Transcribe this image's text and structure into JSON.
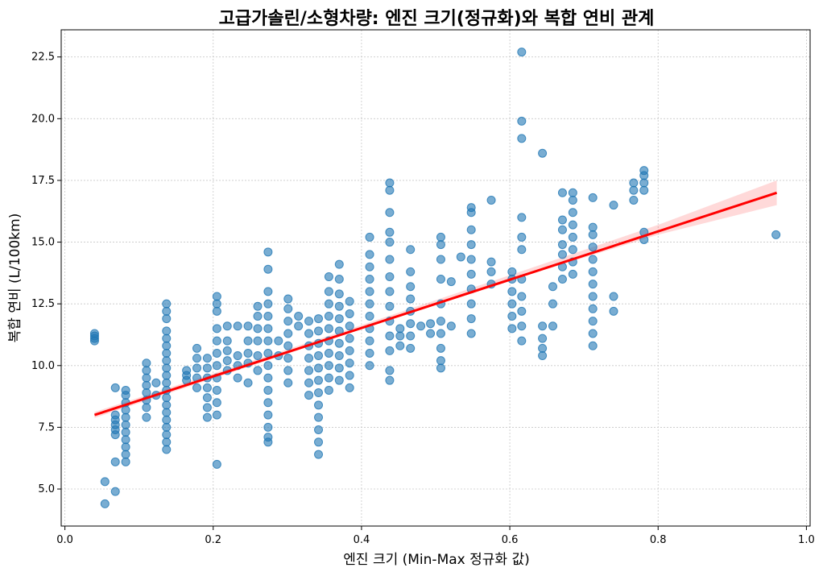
{
  "chart_data": {
    "type": "scatter",
    "title": "고급가솔린/소형차량: 엔진 크기(정규화)와 복합 연비 관계",
    "xlabel": "엔진 크기 (Min-Max 정규화 값)",
    "ylabel": "복합 연비 (L/100km)",
    "xlim": [
      -0.005,
      1.005
    ],
    "ylim": [
      3.5,
      23.6
    ],
    "xticks": [
      0.0,
      0.2,
      0.4,
      0.6,
      0.8,
      1.0
    ],
    "xtick_labels": [
      "0.0",
      "0.2",
      "0.4",
      "0.6",
      "0.8",
      "1.0"
    ],
    "yticks": [
      5.0,
      7.5,
      10.0,
      12.5,
      15.0,
      17.5,
      20.0,
      22.5
    ],
    "ytick_labels": [
      "5.0",
      "7.5",
      "10.0",
      "12.5",
      "15.0",
      "17.5",
      "20.0",
      "22.5"
    ],
    "grid": true,
    "colors": {
      "points": "#1f77b4",
      "regression": "#ff0000"
    },
    "regression": {
      "x": [
        0.04,
        0.96
      ],
      "y": [
        8.0,
        17.0
      ],
      "ci_x": [
        0.04,
        0.2,
        0.4,
        0.6,
        0.8,
        0.96
      ],
      "ci_lower": [
        7.88,
        9.48,
        11.48,
        13.44,
        15.3,
        16.5
      ],
      "ci_upper": [
        8.12,
        9.68,
        11.64,
        13.66,
        15.7,
        17.5
      ]
    },
    "points": [
      [
        0.04,
        11.0
      ],
      [
        0.04,
        11.1
      ],
      [
        0.04,
        11.2
      ],
      [
        0.04,
        11.3
      ],
      [
        0.054,
        5.3
      ],
      [
        0.054,
        4.4
      ],
      [
        0.068,
        4.9
      ],
      [
        0.068,
        6.1
      ],
      [
        0.068,
        7.2
      ],
      [
        0.068,
        7.4
      ],
      [
        0.068,
        7.6
      ],
      [
        0.068,
        7.8
      ],
      [
        0.068,
        8.0
      ],
      [
        0.068,
        9.1
      ],
      [
        0.082,
        6.1
      ],
      [
        0.082,
        6.4
      ],
      [
        0.082,
        6.7
      ],
      [
        0.082,
        7.0
      ],
      [
        0.082,
        7.3
      ],
      [
        0.082,
        7.6
      ],
      [
        0.082,
        7.9
      ],
      [
        0.082,
        8.2
      ],
      [
        0.082,
        8.5
      ],
      [
        0.082,
        8.8
      ],
      [
        0.082,
        9.0
      ],
      [
        0.11,
        7.9
      ],
      [
        0.11,
        8.3
      ],
      [
        0.11,
        8.6
      ],
      [
        0.11,
        8.9
      ],
      [
        0.11,
        9.2
      ],
      [
        0.11,
        9.5
      ],
      [
        0.11,
        9.8
      ],
      [
        0.11,
        10.1
      ],
      [
        0.123,
        8.8
      ],
      [
        0.123,
        9.3
      ],
      [
        0.137,
        6.6
      ],
      [
        0.137,
        6.9
      ],
      [
        0.137,
        7.2
      ],
      [
        0.137,
        7.5
      ],
      [
        0.137,
        7.8
      ],
      [
        0.137,
        8.1
      ],
      [
        0.137,
        8.4
      ],
      [
        0.137,
        8.7
      ],
      [
        0.137,
        9.0
      ],
      [
        0.137,
        9.3
      ],
      [
        0.137,
        9.6
      ],
      [
        0.137,
        9.9
      ],
      [
        0.137,
        10.2
      ],
      [
        0.137,
        10.5
      ],
      [
        0.137,
        10.8
      ],
      [
        0.137,
        11.1
      ],
      [
        0.137,
        11.4
      ],
      [
        0.137,
        11.9
      ],
      [
        0.137,
        12.2
      ],
      [
        0.137,
        12.5
      ],
      [
        0.164,
        9.4
      ],
      [
        0.164,
        9.6
      ],
      [
        0.164,
        9.8
      ],
      [
        0.178,
        9.1
      ],
      [
        0.178,
        9.5
      ],
      [
        0.178,
        9.9
      ],
      [
        0.178,
        10.3
      ],
      [
        0.178,
        10.7
      ],
      [
        0.192,
        7.9
      ],
      [
        0.192,
        8.3
      ],
      [
        0.192,
        8.7
      ],
      [
        0.192,
        9.1
      ],
      [
        0.192,
        9.5
      ],
      [
        0.192,
        9.9
      ],
      [
        0.192,
        10.3
      ],
      [
        0.205,
        6.0
      ],
      [
        0.205,
        8.0
      ],
      [
        0.205,
        8.5
      ],
      [
        0.205,
        9.0
      ],
      [
        0.205,
        9.5
      ],
      [
        0.205,
        10.0
      ],
      [
        0.205,
        10.5
      ],
      [
        0.205,
        11.0
      ],
      [
        0.205,
        11.5
      ],
      [
        0.205,
        12.2
      ],
      [
        0.205,
        12.5
      ],
      [
        0.205,
        12.8
      ],
      [
        0.219,
        9.8
      ],
      [
        0.219,
        10.2
      ],
      [
        0.219,
        10.6
      ],
      [
        0.219,
        11.0
      ],
      [
        0.219,
        11.6
      ],
      [
        0.233,
        9.5
      ],
      [
        0.233,
        10.0
      ],
      [
        0.233,
        10.4
      ],
      [
        0.233,
        11.6
      ],
      [
        0.247,
        9.3
      ],
      [
        0.247,
        10.1
      ],
      [
        0.247,
        10.5
      ],
      [
        0.247,
        11.0
      ],
      [
        0.247,
        11.6
      ],
      [
        0.26,
        9.8
      ],
      [
        0.26,
        10.4
      ],
      [
        0.26,
        11.0
      ],
      [
        0.26,
        11.5
      ],
      [
        0.26,
        12.0
      ],
      [
        0.26,
        12.4
      ],
      [
        0.274,
        6.9
      ],
      [
        0.274,
        7.1
      ],
      [
        0.274,
        7.5
      ],
      [
        0.274,
        8.0
      ],
      [
        0.274,
        8.5
      ],
      [
        0.274,
        9.0
      ],
      [
        0.274,
        9.5
      ],
      [
        0.274,
        10.0
      ],
      [
        0.274,
        10.5
      ],
      [
        0.274,
        11.0
      ],
      [
        0.274,
        11.5
      ],
      [
        0.274,
        12.0
      ],
      [
        0.274,
        12.5
      ],
      [
        0.274,
        13.0
      ],
      [
        0.274,
        13.9
      ],
      [
        0.274,
        14.6
      ],
      [
        0.288,
        10.4
      ],
      [
        0.288,
        11.0
      ],
      [
        0.301,
        9.3
      ],
      [
        0.301,
        9.8
      ],
      [
        0.301,
        10.3
      ],
      [
        0.301,
        10.8
      ],
      [
        0.301,
        11.3
      ],
      [
        0.301,
        11.8
      ],
      [
        0.301,
        12.3
      ],
      [
        0.301,
        12.7
      ],
      [
        0.315,
        11.6
      ],
      [
        0.315,
        12.0
      ],
      [
        0.329,
        8.8
      ],
      [
        0.329,
        9.3
      ],
      [
        0.329,
        9.8
      ],
      [
        0.329,
        10.3
      ],
      [
        0.329,
        10.8
      ],
      [
        0.329,
        11.3
      ],
      [
        0.329,
        11.8
      ],
      [
        0.342,
        6.4
      ],
      [
        0.342,
        6.9
      ],
      [
        0.342,
        7.4
      ],
      [
        0.342,
        7.9
      ],
      [
        0.342,
        8.4
      ],
      [
        0.342,
        8.9
      ],
      [
        0.342,
        9.4
      ],
      [
        0.342,
        9.9
      ],
      [
        0.342,
        10.4
      ],
      [
        0.342,
        10.9
      ],
      [
        0.342,
        11.4
      ],
      [
        0.342,
        11.9
      ],
      [
        0.356,
        9.0
      ],
      [
        0.356,
        9.5
      ],
      [
        0.356,
        10.0
      ],
      [
        0.356,
        10.5
      ],
      [
        0.356,
        11.0
      ],
      [
        0.356,
        11.5
      ],
      [
        0.356,
        12.0
      ],
      [
        0.356,
        12.5
      ],
      [
        0.356,
        13.0
      ],
      [
        0.356,
        13.6
      ],
      [
        0.37,
        9.4
      ],
      [
        0.37,
        9.9
      ],
      [
        0.37,
        10.4
      ],
      [
        0.37,
        10.9
      ],
      [
        0.37,
        11.4
      ],
      [
        0.37,
        11.9
      ],
      [
        0.37,
        12.4
      ],
      [
        0.37,
        12.9
      ],
      [
        0.37,
        13.5
      ],
      [
        0.37,
        14.1
      ],
      [
        0.384,
        9.1
      ],
      [
        0.384,
        9.6
      ],
      [
        0.384,
        10.1
      ],
      [
        0.384,
        10.6
      ],
      [
        0.384,
        11.1
      ],
      [
        0.384,
        11.6
      ],
      [
        0.384,
        12.1
      ],
      [
        0.384,
        12.6
      ],
      [
        0.411,
        10.0
      ],
      [
        0.411,
        10.5
      ],
      [
        0.411,
        11.0
      ],
      [
        0.411,
        11.5
      ],
      [
        0.411,
        12.0
      ],
      [
        0.411,
        12.5
      ],
      [
        0.411,
        13.0
      ],
      [
        0.411,
        13.5
      ],
      [
        0.411,
        14.0
      ],
      [
        0.411,
        14.5
      ],
      [
        0.411,
        15.2
      ],
      [
        0.438,
        9.4
      ],
      [
        0.438,
        9.8
      ],
      [
        0.438,
        10.6
      ],
      [
        0.438,
        11.2
      ],
      [
        0.438,
        11.8
      ],
      [
        0.438,
        12.4
      ],
      [
        0.438,
        13.0
      ],
      [
        0.438,
        13.6
      ],
      [
        0.438,
        14.3
      ],
      [
        0.438,
        15.0
      ],
      [
        0.438,
        15.4
      ],
      [
        0.438,
        16.2
      ],
      [
        0.438,
        17.1
      ],
      [
        0.438,
        17.4
      ],
      [
        0.452,
        10.8
      ],
      [
        0.452,
        11.2
      ],
      [
        0.452,
        11.5
      ],
      [
        0.466,
        10.7
      ],
      [
        0.466,
        11.2
      ],
      [
        0.466,
        11.7
      ],
      [
        0.466,
        12.2
      ],
      [
        0.466,
        12.7
      ],
      [
        0.466,
        13.2
      ],
      [
        0.466,
        13.8
      ],
      [
        0.466,
        14.7
      ],
      [
        0.48,
        11.6
      ],
      [
        0.493,
        11.3
      ],
      [
        0.493,
        11.7
      ],
      [
        0.507,
        9.9
      ],
      [
        0.507,
        10.2
      ],
      [
        0.507,
        10.7
      ],
      [
        0.507,
        11.3
      ],
      [
        0.507,
        11.8
      ],
      [
        0.507,
        12.5
      ],
      [
        0.507,
        13.5
      ],
      [
        0.507,
        14.3
      ],
      [
        0.507,
        14.9
      ],
      [
        0.507,
        15.2
      ],
      [
        0.521,
        11.6
      ],
      [
        0.521,
        13.4
      ],
      [
        0.534,
        14.4
      ],
      [
        0.548,
        11.3
      ],
      [
        0.548,
        11.9
      ],
      [
        0.548,
        12.5
      ],
      [
        0.548,
        13.1
      ],
      [
        0.548,
        13.7
      ],
      [
        0.548,
        14.3
      ],
      [
        0.548,
        14.9
      ],
      [
        0.548,
        15.5
      ],
      [
        0.548,
        16.2
      ],
      [
        0.548,
        16.4
      ],
      [
        0.575,
        13.3
      ],
      [
        0.575,
        13.8
      ],
      [
        0.575,
        14.2
      ],
      [
        0.575,
        16.7
      ],
      [
        0.603,
        11.5
      ],
      [
        0.603,
        12.0
      ],
      [
        0.603,
        12.5
      ],
      [
        0.603,
        13.0
      ],
      [
        0.603,
        13.5
      ],
      [
        0.603,
        13.8
      ],
      [
        0.616,
        11.0
      ],
      [
        0.616,
        11.6
      ],
      [
        0.616,
        12.2
      ],
      [
        0.616,
        12.8
      ],
      [
        0.616,
        13.5
      ],
      [
        0.616,
        14.7
      ],
      [
        0.616,
        15.2
      ],
      [
        0.616,
        16.0
      ],
      [
        0.616,
        19.2
      ],
      [
        0.616,
        19.9
      ],
      [
        0.616,
        22.7
      ],
      [
        0.644,
        10.4
      ],
      [
        0.644,
        10.7
      ],
      [
        0.644,
        11.1
      ],
      [
        0.644,
        11.6
      ],
      [
        0.644,
        18.6
      ],
      [
        0.658,
        11.6
      ],
      [
        0.658,
        12.5
      ],
      [
        0.658,
        13.2
      ],
      [
        0.671,
        13.5
      ],
      [
        0.671,
        14.0
      ],
      [
        0.671,
        14.5
      ],
      [
        0.671,
        14.9
      ],
      [
        0.671,
        15.5
      ],
      [
        0.671,
        15.9
      ],
      [
        0.671,
        17.0
      ],
      [
        0.685,
        13.7
      ],
      [
        0.685,
        14.2
      ],
      [
        0.685,
        14.7
      ],
      [
        0.685,
        15.2
      ],
      [
        0.685,
        15.7
      ],
      [
        0.685,
        16.2
      ],
      [
        0.685,
        16.7
      ],
      [
        0.685,
        17.0
      ],
      [
        0.712,
        10.8
      ],
      [
        0.712,
        11.3
      ],
      [
        0.712,
        11.8
      ],
      [
        0.712,
        12.3
      ],
      [
        0.712,
        12.8
      ],
      [
        0.712,
        13.3
      ],
      [
        0.712,
        13.8
      ],
      [
        0.712,
        14.3
      ],
      [
        0.712,
        14.8
      ],
      [
        0.712,
        15.3
      ],
      [
        0.712,
        15.6
      ],
      [
        0.712,
        16.8
      ],
      [
        0.74,
        12.2
      ],
      [
        0.74,
        12.8
      ],
      [
        0.74,
        16.5
      ],
      [
        0.767,
        16.7
      ],
      [
        0.767,
        17.1
      ],
      [
        0.767,
        17.4
      ],
      [
        0.781,
        15.1
      ],
      [
        0.781,
        15.4
      ],
      [
        0.781,
        17.1
      ],
      [
        0.781,
        17.4
      ],
      [
        0.781,
        17.7
      ],
      [
        0.781,
        17.9
      ],
      [
        0.959,
        15.3
      ]
    ]
  }
}
